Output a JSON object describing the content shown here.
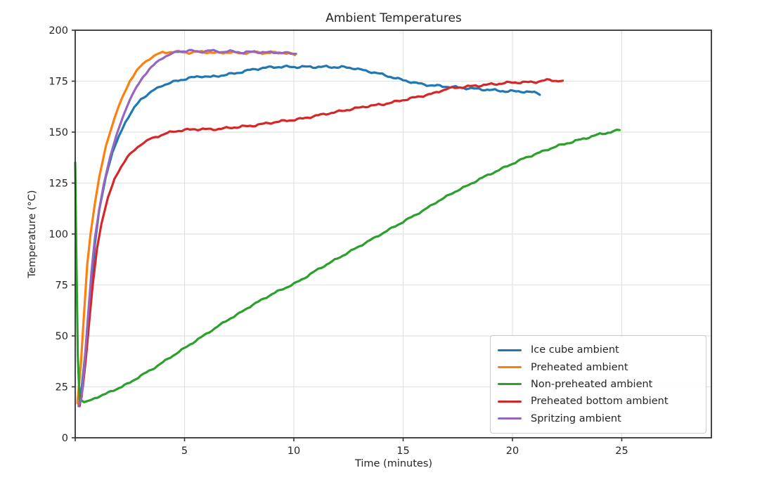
{
  "title": "Ambient Temperatures",
  "chart_data": {
    "type": "line",
    "title": "Ambient Temperatures",
    "xlabel": "Time (minutes)",
    "ylabel": "Temperature (°C)",
    "xlim": [
      0,
      29.1
    ],
    "ylim": [
      0,
      200
    ],
    "xticks": [
      0,
      5,
      10,
      15,
      20,
      25
    ],
    "xtick_labels": [
      "",
      "5",
      "10",
      "15",
      "20",
      "25"
    ],
    "yticks": [
      0,
      25,
      50,
      75,
      100,
      125,
      150,
      175,
      200
    ],
    "ytick_labels": [
      "0",
      "25",
      "50",
      "75",
      "100",
      "125",
      "150",
      "175",
      "200"
    ],
    "grid": true,
    "legend_position": "lower right",
    "series": [
      {
        "name": "Ice cube ambient",
        "color": "#1f77b4",
        "points": [
          [
            0.15,
            16.5
          ],
          [
            0.3,
            25
          ],
          [
            0.5,
            45
          ],
          [
            0.7,
            70
          ],
          [
            0.9,
            95
          ],
          [
            1.1,
            112
          ],
          [
            1.4,
            128
          ],
          [
            1.7,
            140
          ],
          [
            2.0,
            148
          ],
          [
            2.3,
            155
          ],
          [
            2.7,
            162
          ],
          [
            3.0,
            166
          ],
          [
            3.5,
            170
          ],
          [
            4.0,
            173
          ],
          [
            4.6,
            175
          ],
          [
            5.2,
            176.5
          ],
          [
            5.8,
            177.5
          ],
          [
            6.2,
            177
          ],
          [
            6.8,
            178
          ],
          [
            7.4,
            179
          ],
          [
            8.0,
            180.5
          ],
          [
            8.6,
            181.5
          ],
          [
            9.2,
            182
          ],
          [
            10.5,
            182
          ],
          [
            11.5,
            182
          ],
          [
            12.3,
            181.8
          ],
          [
            12.8,
            181.3
          ],
          [
            13.3,
            180
          ],
          [
            13.8,
            179
          ],
          [
            14.3,
            177.5
          ],
          [
            15.0,
            175.5
          ],
          [
            15.6,
            174
          ],
          [
            16.2,
            173
          ],
          [
            16.8,
            172.5
          ],
          [
            17.4,
            172
          ],
          [
            18.0,
            171.5
          ],
          [
            18.6,
            171
          ],
          [
            19.2,
            170.5
          ],
          [
            19.8,
            170
          ],
          [
            20.4,
            170
          ],
          [
            20.9,
            169.5
          ],
          [
            21.1,
            169.3
          ],
          [
            21.25,
            168.3
          ]
        ]
      },
      {
        "name": "Preheated ambient",
        "color": "#ff7f0e",
        "points": [
          [
            0.1,
            17
          ],
          [
            0.25,
            35
          ],
          [
            0.4,
            60
          ],
          [
            0.55,
            85
          ],
          [
            0.7,
            100
          ],
          [
            0.9,
            115
          ],
          [
            1.1,
            128
          ],
          [
            1.4,
            143
          ],
          [
            1.6,
            150
          ],
          [
            1.8,
            157
          ],
          [
            2.0,
            163
          ],
          [
            2.2,
            168
          ],
          [
            2.5,
            175
          ],
          [
            2.8,
            180
          ],
          [
            3.1,
            183.5
          ],
          [
            3.4,
            186
          ],
          [
            3.7,
            188
          ],
          [
            4.0,
            189
          ],
          [
            4.5,
            189.5
          ],
          [
            5.2,
            189
          ],
          [
            5.8,
            189.5
          ],
          [
            6.4,
            188.8
          ],
          [
            7.0,
            189.2
          ],
          [
            7.6,
            188.7
          ],
          [
            8.2,
            189.2
          ],
          [
            8.8,
            188.8
          ],
          [
            9.4,
            189
          ],
          [
            9.8,
            188.6
          ],
          [
            10.05,
            187.8
          ]
        ]
      },
      {
        "name": "Non-preheated ambient",
        "color": "#2ca02c",
        "points": [
          [
            0.0,
            135
          ],
          [
            0.05,
            90
          ],
          [
            0.12,
            40
          ],
          [
            0.2,
            19
          ],
          [
            0.4,
            17.5
          ],
          [
            0.7,
            18.5
          ],
          [
            1.0,
            20
          ],
          [
            1.5,
            22
          ],
          [
            2.0,
            24.5
          ],
          [
            2.5,
            27
          ],
          [
            3.0,
            30.5
          ],
          [
            3.5,
            33.5
          ],
          [
            4.0,
            37
          ],
          [
            4.5,
            40.5
          ],
          [
            5.0,
            44
          ],
          [
            5.5,
            47.5
          ],
          [
            6.0,
            51
          ],
          [
            6.5,
            54.5
          ],
          [
            7.0,
            58
          ],
          [
            7.5,
            61
          ],
          [
            8.0,
            64.5
          ],
          [
            8.5,
            67.5
          ],
          [
            9.0,
            70.5
          ],
          [
            9.5,
            73
          ],
          [
            10.0,
            75.5
          ],
          [
            10.5,
            78.5
          ],
          [
            11.0,
            82
          ],
          [
            11.5,
            85
          ],
          [
            12.0,
            88
          ],
          [
            12.5,
            91
          ],
          [
            13.0,
            94
          ],
          [
            13.5,
            97
          ],
          [
            14.0,
            100
          ],
          [
            14.5,
            103
          ],
          [
            15.0,
            106
          ],
          [
            15.5,
            109
          ],
          [
            16.0,
            112
          ],
          [
            16.5,
            115.5
          ],
          [
            17.0,
            118.5
          ],
          [
            17.5,
            121.5
          ],
          [
            18.0,
            124
          ],
          [
            18.5,
            127
          ],
          [
            19.0,
            129.5
          ],
          [
            19.5,
            132
          ],
          [
            20.0,
            134.5
          ],
          [
            20.5,
            137
          ],
          [
            21.0,
            139
          ],
          [
            21.5,
            141
          ],
          [
            22.0,
            143
          ],
          [
            22.5,
            144.5
          ],
          [
            23.0,
            146
          ],
          [
            23.5,
            147.5
          ],
          [
            24.0,
            149
          ],
          [
            24.5,
            150
          ],
          [
            24.9,
            151
          ]
        ]
      },
      {
        "name": "Preheated bottom ambient",
        "color": "#d62728",
        "points": [
          [
            0.2,
            15.5
          ],
          [
            0.35,
            25
          ],
          [
            0.5,
            40
          ],
          [
            0.65,
            58
          ],
          [
            0.8,
            75
          ],
          [
            1.0,
            93
          ],
          [
            1.2,
            105
          ],
          [
            1.5,
            118
          ],
          [
            1.8,
            127
          ],
          [
            2.1,
            133
          ],
          [
            2.4,
            138
          ],
          [
            2.7,
            141
          ],
          [
            3.0,
            144
          ],
          [
            3.4,
            146.5
          ],
          [
            3.8,
            148
          ],
          [
            4.2,
            149.5
          ],
          [
            4.6,
            150.5
          ],
          [
            5.0,
            151
          ],
          [
            5.6,
            151.5
          ],
          [
            6.2,
            151.3
          ],
          [
            6.8,
            151.8
          ],
          [
            7.4,
            152.5
          ],
          [
            8.0,
            153
          ],
          [
            8.6,
            154
          ],
          [
            9.2,
            155
          ],
          [
            9.8,
            155.8
          ],
          [
            10.4,
            156.6
          ],
          [
            11.0,
            158
          ],
          [
            11.6,
            159.2
          ],
          [
            12.2,
            160.4
          ],
          [
            12.8,
            161.6
          ],
          [
            13.4,
            162.8
          ],
          [
            14.0,
            163.5
          ],
          [
            14.6,
            164.8
          ],
          [
            15.2,
            166.2
          ],
          [
            15.8,
            167.6
          ],
          [
            16.4,
            169
          ],
          [
            17.0,
            171.3
          ],
          [
            17.6,
            172
          ],
          [
            18.2,
            172.6
          ],
          [
            18.8,
            173.2
          ],
          [
            19.4,
            173.8
          ],
          [
            20.0,
            174.4
          ],
          [
            20.6,
            174.4
          ],
          [
            21.2,
            174.8
          ],
          [
            21.7,
            175.7
          ],
          [
            22.0,
            175.2
          ],
          [
            22.3,
            175.2
          ]
        ]
      },
      {
        "name": "Spritzing ambient",
        "color": "#9467bd",
        "points": [
          [
            0.15,
            15.5
          ],
          [
            0.3,
            20
          ],
          [
            0.45,
            40
          ],
          [
            0.6,
            62
          ],
          [
            0.75,
            82
          ],
          [
            0.9,
            98
          ],
          [
            1.1,
            112
          ],
          [
            1.3,
            124
          ],
          [
            1.6,
            138
          ],
          [
            1.9,
            149
          ],
          [
            2.2,
            158
          ],
          [
            2.5,
            166
          ],
          [
            2.8,
            172
          ],
          [
            3.1,
            177
          ],
          [
            3.4,
            181
          ],
          [
            3.7,
            184
          ],
          [
            4.0,
            186.5
          ],
          [
            4.3,
            188
          ],
          [
            4.7,
            189.5
          ],
          [
            5.2,
            190
          ],
          [
            5.7,
            189.4
          ],
          [
            6.2,
            190
          ],
          [
            6.7,
            189.4
          ],
          [
            7.2,
            189.6
          ],
          [
            7.7,
            189
          ],
          [
            8.2,
            189.5
          ],
          [
            8.7,
            189
          ],
          [
            9.2,
            189.2
          ],
          [
            9.6,
            188.8
          ],
          [
            10.1,
            188.4
          ]
        ]
      }
    ]
  },
  "colors": {
    "background": "#ffffff",
    "grid": "#e1e1e1",
    "spine": "#333333",
    "tick": "#333333",
    "text": "#262626",
    "legend_border": "#cccccc"
  }
}
